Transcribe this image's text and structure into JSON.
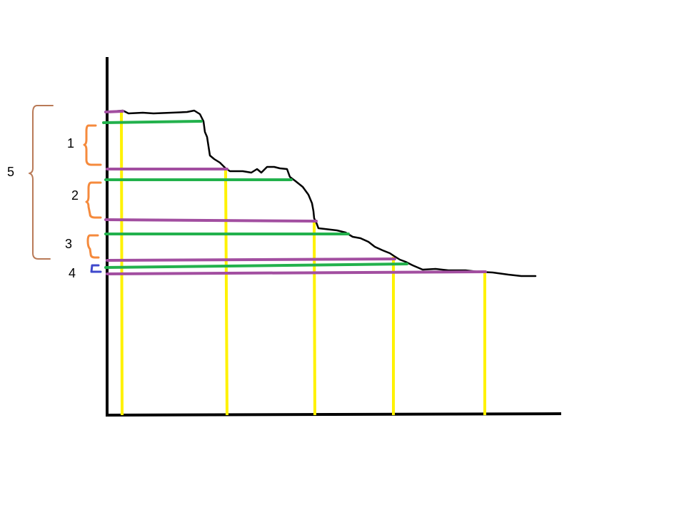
{
  "diagram": {
    "labels": {
      "l1": "1",
      "l2": "2",
      "l3": "3",
      "l4": "4",
      "l5": "5"
    },
    "colors": {
      "axis": "#000000",
      "curve": "#000000",
      "purple": "#a24ea0",
      "green": "#22b14c",
      "yellow": "#fff200",
      "orange_bracket": "#f58a3c",
      "blue_bracket": "#3f48cc",
      "brown_bracket": "#b97a57"
    }
  }
}
